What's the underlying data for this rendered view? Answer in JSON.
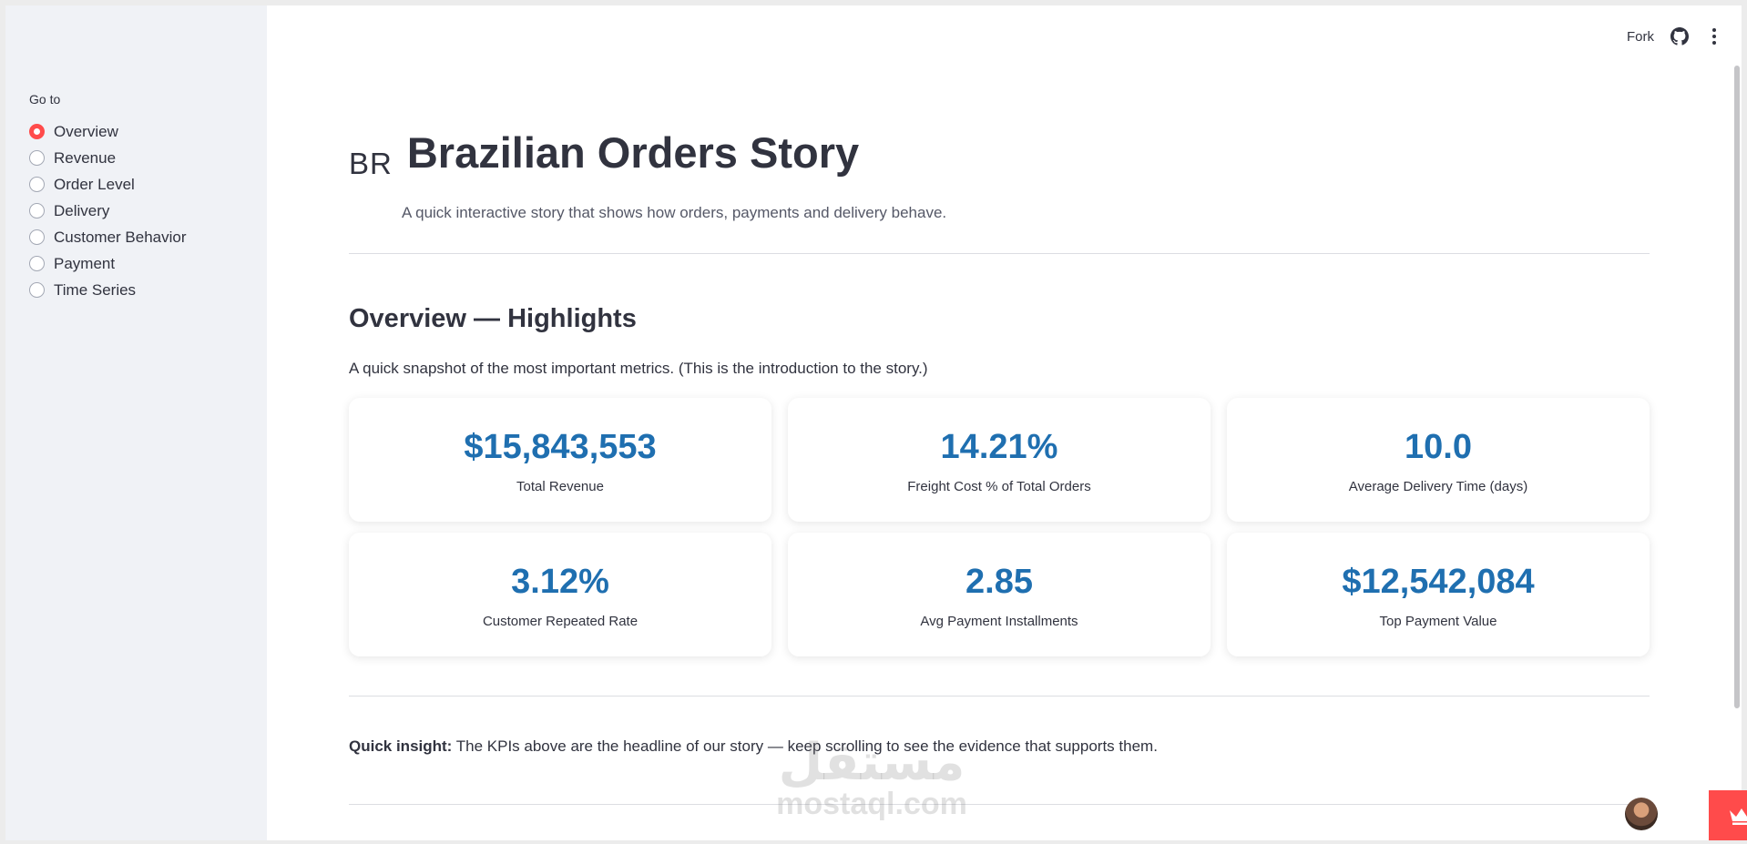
{
  "sidebar": {
    "heading": "Go to",
    "items": [
      {
        "label": "Overview",
        "selected": true
      },
      {
        "label": "Revenue",
        "selected": false
      },
      {
        "label": "Order Level",
        "selected": false
      },
      {
        "label": "Delivery",
        "selected": false
      },
      {
        "label": "Customer Behavior",
        "selected": false
      },
      {
        "label": "Payment",
        "selected": false
      },
      {
        "label": "Time Series",
        "selected": false
      }
    ]
  },
  "toolbar": {
    "fork_label": "Fork",
    "icons": [
      "github-icon",
      "more-vertical-icon"
    ]
  },
  "header": {
    "flag_text": "BR",
    "title": "Brazilian Orders Story",
    "subtitle": "A quick interactive story that shows how orders, payments and delivery behave."
  },
  "overview": {
    "title": "Overview — Highlights",
    "description": "A quick snapshot of the most important metrics. (This is the introduction to the story.)",
    "kpis": [
      {
        "value": "$15,843,553",
        "label": "Total Revenue"
      },
      {
        "value": "14.21%",
        "label": "Freight Cost % of Total Orders"
      },
      {
        "value": "10.0",
        "label": "Average Delivery Time (days)"
      },
      {
        "value": "3.12%",
        "label": "Customer Repeated Rate"
      },
      {
        "value": "2.85",
        "label": "Avg Payment Installments"
      },
      {
        "value": "$12,542,084",
        "label": "Top Payment Value"
      }
    ]
  },
  "insight": {
    "bold": "Quick insight:",
    "text": " The KPIs above are the headline of our story — keep scrolling to see the evidence that supports them."
  },
  "watermark": {
    "arabic": "مستقل",
    "latin": "mostaql.com"
  },
  "colors": {
    "accent": "#ff4b4b",
    "kpi_value": "#1f6fb0",
    "sidebar_bg": "#f0f2f6"
  }
}
